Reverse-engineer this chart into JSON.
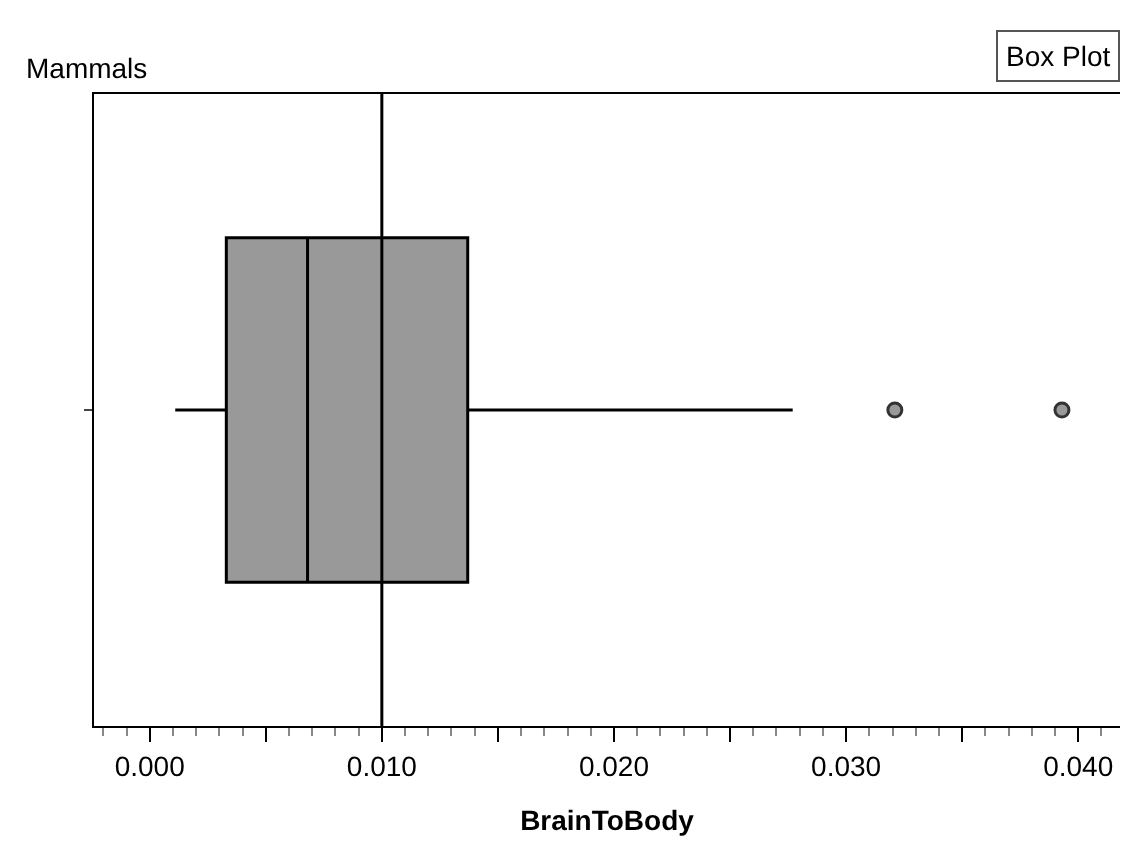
{
  "chart_data": {
    "type": "box",
    "title": "Mammals",
    "xlabel": "BrainToBody",
    "orientation": "horizontal",
    "categories": [
      null
    ],
    "boxes": [
      {
        "low": 0.0011,
        "q1": 0.0033,
        "median": 0.0068,
        "q3": 0.0137,
        "high": 0.0277,
        "outliers": [
          0.0321,
          0.0393
        ]
      }
    ],
    "color": "#999999",
    "xlim": [
      -0.0024,
      0.0418
    ],
    "xticks": [
      {
        "value": 0,
        "label": "0.000"
      },
      {
        "value": 0.005,
        "label": null
      },
      {
        "value": 0.01,
        "label": "0.010"
      },
      {
        "value": 0.015,
        "label": null
      },
      {
        "value": 0.02,
        "label": "0.020"
      },
      {
        "value": 0.025,
        "label": null
      },
      {
        "value": 0.03,
        "label": "0.030"
      },
      {
        "value": 0.035,
        "label": null
      },
      {
        "value": 0.04,
        "label": "0.040"
      }
    ],
    "ref_lines": [
      {
        "axis": "x",
        "value": 0.01,
        "label": null,
        "color": "#000000"
      }
    ],
    "annotations": [
      "Box Plot"
    ],
    "marker": "circle"
  }
}
